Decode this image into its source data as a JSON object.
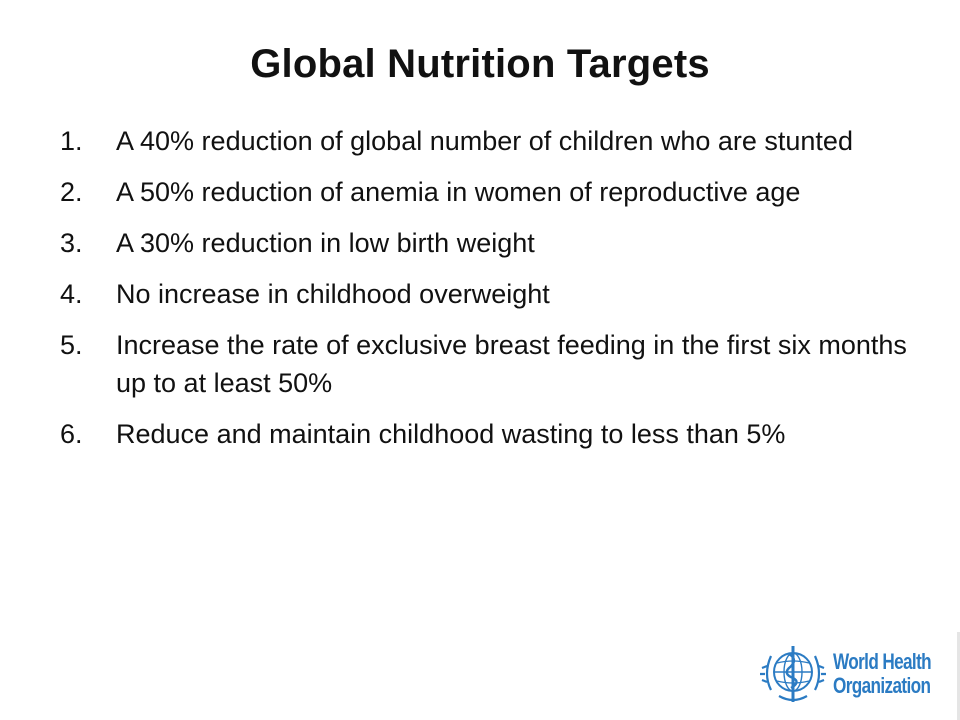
{
  "slide": {
    "title": "Global Nutrition Targets",
    "items": [
      {
        "num": "1.",
        "text": "A 40% reduction of global number of children who are stunted"
      },
      {
        "num": "2.",
        "text": "A 50% reduction of anemia in women of reproductive age"
      },
      {
        "num": "3.",
        "text": "A 30% reduction in low birth weight"
      },
      {
        "num": "4.",
        "text": "No increase in childhood overweight"
      },
      {
        "num": "5.",
        "text": "Increase the rate of exclusive breast feeding  in the first six months up to at least 50%"
      },
      {
        "num": "6.",
        "text": "Reduce and maintain childhood wasting to less than 5%"
      }
    ]
  },
  "logo": {
    "line1": "World Health",
    "line2": "Organization",
    "color": "#2b7bc3"
  }
}
